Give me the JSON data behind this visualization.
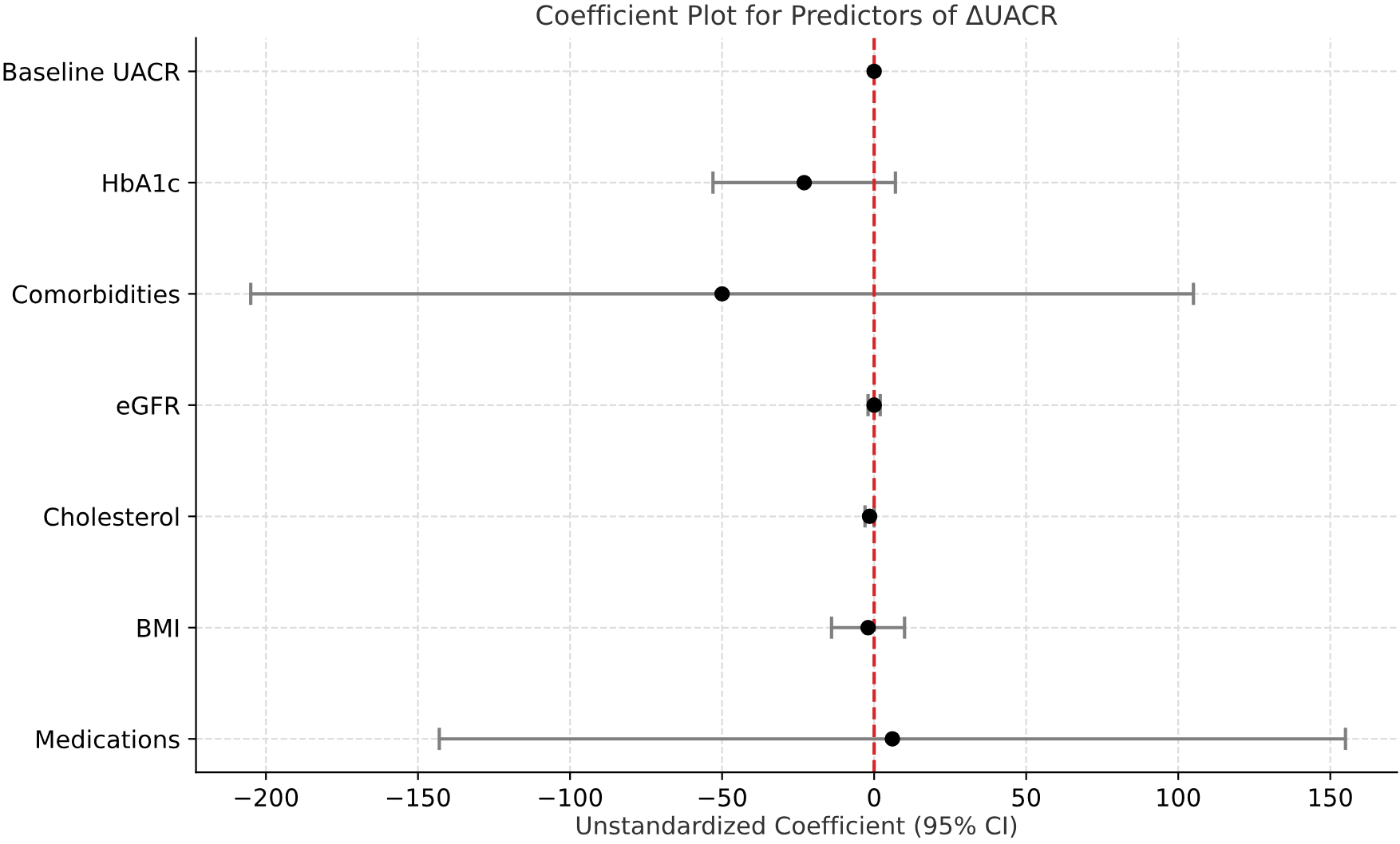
{
  "chart_data": {
    "type": "scatter",
    "orientation": "horizontal",
    "title": "Coefficient Plot for Predictors of ΔUACR",
    "xlabel": "Unstandardized Coefficient (95% CI)",
    "categories": [
      "Baseline UACR",
      "HbA1c",
      "Comorbidities",
      "eGFR",
      "Cholesterol",
      "BMI",
      "Medications"
    ],
    "values": [
      0,
      -23,
      -50,
      0,
      -1.5,
      -2,
      6
    ],
    "errors": [
      null,
      [
        -53,
        7
      ],
      [
        -205,
        105
      ],
      [
        -2,
        2
      ],
      [
        -3,
        0
      ],
      [
        -14,
        10
      ],
      [
        -143,
        155
      ]
    ],
    "color": "#000000",
    "marker": "circle",
    "xlim": [
      -223,
      172
    ],
    "xticks": [
      -200,
      -150,
      -100,
      -50,
      0,
      50,
      100,
      150
    ],
    "ref_lines": [
      {
        "axis": "x",
        "value": 0,
        "color": "#d62728",
        "line_style": "dashed"
      }
    ],
    "grid": true
  }
}
